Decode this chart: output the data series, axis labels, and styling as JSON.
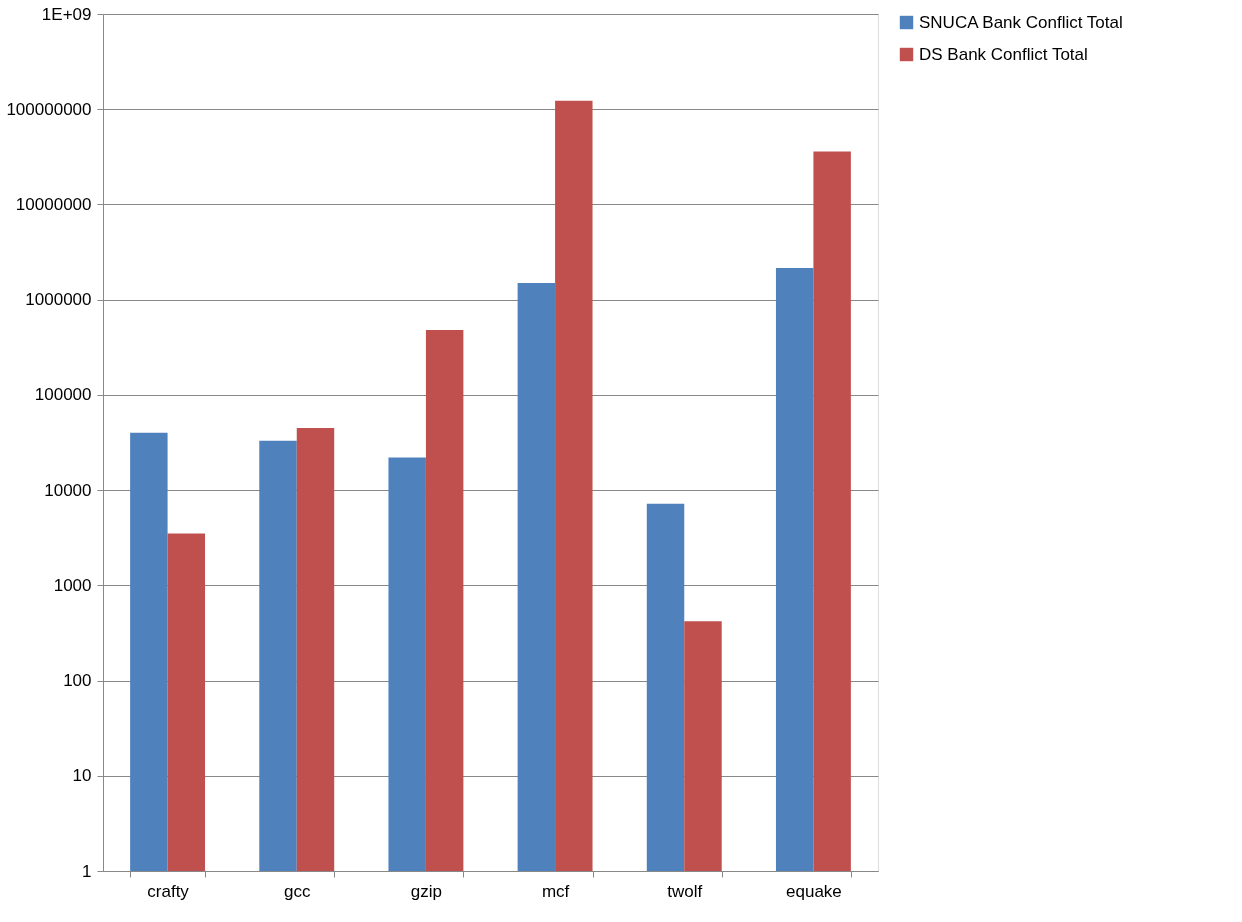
{
  "chart_data": {
    "type": "bar",
    "categories": [
      "crafty",
      "gcc",
      "gzip",
      "mcf",
      "twolf",
      "equake"
    ],
    "series": [
      {
        "name": "SNUCA Bank Conflict Total",
        "color": "#4f81bd",
        "values": [
          40000,
          33000,
          22000,
          1500000,
          7200,
          2150000
        ]
      },
      {
        "name": "DS Bank Conflict Total",
        "color": "#c0504d",
        "values": [
          3500,
          45000,
          480000,
          123000000,
          420,
          36000000
        ]
      }
    ],
    "log": true,
    "ylim": [
      1,
      1000000000
    ],
    "yticks": [
      1,
      10,
      100,
      1000,
      10000,
      100000,
      1000000,
      10000000,
      100000000,
      {
        "value": 1000000000,
        "label": "1E+09"
      }
    ],
    "grid": "y",
    "legend": "right"
  }
}
